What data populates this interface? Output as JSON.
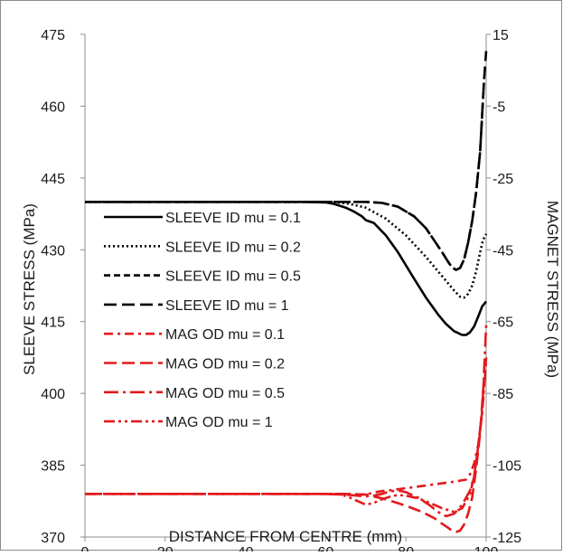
{
  "chart_data": {
    "type": "line",
    "title": "",
    "xlabel": "DISTANCE FROM CENTRE (mm)",
    "ylabel": "SLEEVE STRESS (MPa)",
    "y2label": "MAGNET STRESS (MPa)",
    "xlim": [
      0,
      100
    ],
    "ylim": [
      370,
      475
    ],
    "y2lim": [
      -125,
      15
    ],
    "xticks": [
      "0",
      "20",
      "40",
      "60",
      "80",
      "100"
    ],
    "yticks": [
      "370",
      "385",
      "400",
      "415",
      "430",
      "445",
      "460",
      "475"
    ],
    "y2ticks": [
      "-125",
      "-105",
      "-85",
      "-65",
      "-45",
      "-25",
      "-5",
      "15"
    ],
    "grid": false,
    "legend_position": "left",
    "series": [
      {
        "name": "SLEEVE ID mu = 0.1",
        "axis": "left",
        "color": "#000000",
        "dash": "solid",
        "x": [
          0,
          20,
          40,
          55,
          60,
          62,
          65,
          67,
          69,
          70,
          72,
          75,
          78,
          82,
          85,
          88,
          90,
          92,
          94,
          95,
          96,
          97,
          98,
          99,
          100
        ],
        "y": [
          440,
          440,
          440,
          440,
          439.9,
          439.6,
          438.8,
          438,
          437,
          436.2,
          435.6,
          433,
          429.5,
          424,
          420,
          416.5,
          414.5,
          413,
          412.2,
          412.2,
          412.8,
          414,
          416,
          418.2,
          419.2
        ]
      },
      {
        "name": "SLEEVE ID mu = 0.2",
        "axis": "left",
        "color": "#000000",
        "dash": "dotted",
        "x": [
          0,
          20,
          40,
          60,
          63,
          66,
          70,
          75,
          80,
          85,
          88,
          90,
          92,
          93.5,
          94.5,
          95.5,
          96.5,
          97.5,
          98.5,
          99.2,
          100
        ],
        "y": [
          440,
          440,
          440,
          440,
          439.9,
          439.6,
          438.8,
          436.5,
          433,
          428.5,
          425.5,
          423.5,
          421.5,
          420.2,
          420,
          420.8,
          422.5,
          425.5,
          429.5,
          432,
          433.3
        ]
      },
      {
        "name": "SLEEVE ID mu = 0.5",
        "axis": "left",
        "color": "#000000",
        "dash": "short-dash",
        "x": [
          0,
          20,
          40,
          60,
          65,
          70,
          74,
          78,
          82,
          85,
          87,
          89,
          90.5,
          91.5,
          92.5,
          93.5,
          94.5,
          95.5,
          96.5,
          97.5,
          98.5,
          99.5
        ],
        "y": [
          440,
          440,
          440,
          440,
          440,
          440,
          439.8,
          439,
          437,
          434.5,
          432,
          429.5,
          427.5,
          426.3,
          425.8,
          426.2,
          428,
          431.5,
          436,
          442,
          450.5,
          466
        ]
      },
      {
        "name": "SLEEVE ID mu = 1",
        "axis": "left",
        "color": "#000000",
        "dash": "long-dash",
        "x": [
          0,
          20,
          40,
          60,
          65,
          70,
          74,
          78,
          82,
          85,
          87,
          89,
          90.5,
          91.5,
          92.5,
          93.5,
          94.5,
          95.5,
          96.5,
          97.5,
          98.5,
          99.5,
          100
        ],
        "y": [
          440,
          440,
          440,
          440,
          440,
          440,
          439.8,
          439,
          437,
          434.5,
          432,
          429.5,
          427.5,
          426.3,
          425.8,
          426.2,
          428,
          431.5,
          436,
          442,
          450.5,
          466,
          471.5
        ]
      },
      {
        "name": "MAG OD mu = 0.1",
        "axis": "right",
        "color": "#e31a1c",
        "dash": "dash-dot",
        "x": [
          0,
          20,
          40,
          60,
          65,
          70,
          72,
          74,
          76,
          78,
          80,
          84,
          88,
          92,
          95,
          96,
          97,
          98,
          99,
          100
        ],
        "y": [
          -113,
          -113,
          -113,
          -113,
          -113,
          -113.2,
          -112.6,
          -112.2,
          -112,
          -111.7,
          -111.4,
          -110.8,
          -110.2,
          -109.6,
          -109,
          -107.5,
          -104.5,
          -99.5,
          -90,
          -75
        ]
      },
      {
        "name": "MAG OD mu = 0.2",
        "axis": "right",
        "color": "#e31a1c",
        "dash": "long-dash",
        "x": [
          0,
          20,
          40,
          60,
          65,
          70,
          75,
          80,
          84,
          87,
          89,
          90.5,
          91.5,
          92.5,
          93.5,
          94.5,
          95.5,
          96.5,
          97.5,
          98.5,
          99.5
        ],
        "y": [
          -113,
          -113,
          -113,
          -113,
          -113,
          -113.2,
          -114.5,
          -116.3,
          -118,
          -119.7,
          -121.3,
          -122.4,
          -123.3,
          -123.6,
          -123.2,
          -121.5,
          -118.5,
          -114,
          -106,
          -96,
          -80
        ]
      },
      {
        "name": "MAG OD mu = 0.5",
        "axis": "right",
        "color": "#e31a1c",
        "dash": "long-dash-dot",
        "x": [
          0,
          20,
          40,
          60,
          66,
          70,
          72,
          74,
          76,
          78,
          80,
          83,
          86,
          88,
          90,
          92,
          94,
          96,
          97,
          98,
          99,
          100
        ],
        "y": [
          -113,
          -113,
          -113,
          -113,
          -113.3,
          -113.7,
          -113.5,
          -113,
          -112.3,
          -112,
          -112.5,
          -114,
          -116.2,
          -118,
          -119.2,
          -118.5,
          -116,
          -112,
          -108,
          -100,
          -90,
          -66
        ]
      },
      {
        "name": "MAG OD mu = 1",
        "axis": "right",
        "color": "#e31a1c",
        "dash": "dash-dot-dot",
        "x": [
          0,
          20,
          40,
          60,
          64,
          66,
          68,
          70,
          72,
          74,
          76,
          78,
          80,
          83,
          86,
          89,
          92,
          94,
          96,
          97,
          98,
          99,
          100
        ],
        "y": [
          -113,
          -113,
          -113,
          -113,
          -113.2,
          -114,
          -115,
          -116,
          -115.5,
          -114.5,
          -113.8,
          -113.3,
          -113.5,
          -114.2,
          -115.5,
          -117,
          -118,
          -117,
          -113,
          -108,
          -100,
          -90,
          -76
        ]
      }
    ]
  }
}
